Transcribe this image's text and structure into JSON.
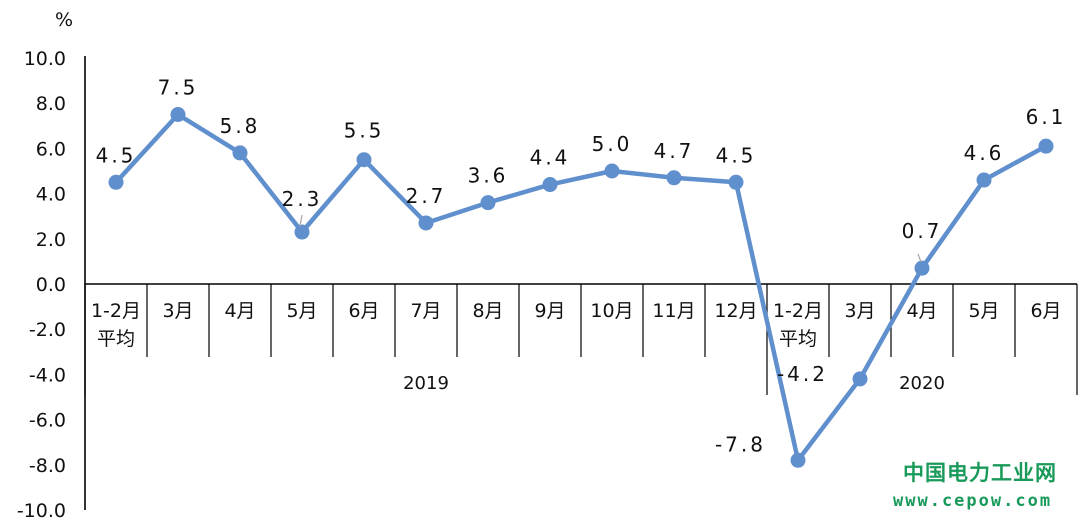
{
  "chart_data": {
    "type": "line",
    "unit": "%",
    "ylim": [
      -10,
      10
    ],
    "yticks": [
      "10.0",
      "8.0",
      "6.0",
      "4.0",
      "2.0",
      "0.0",
      "-2.0",
      "-4.0",
      "-6.0",
      "-8.0",
      "-10.0"
    ],
    "categories": [
      [
        "1-2月",
        "平均"
      ],
      [
        "3月"
      ],
      [
        "4月"
      ],
      [
        "5月"
      ],
      [
        "6月"
      ],
      [
        "7月"
      ],
      [
        "8月"
      ],
      [
        "9月"
      ],
      [
        "10月"
      ],
      [
        "11月"
      ],
      [
        "12月"
      ],
      [
        "1-2月",
        "平均"
      ],
      [
        "3月"
      ],
      [
        "4月"
      ],
      [
        "5月"
      ],
      [
        "6月"
      ]
    ],
    "groups": [
      {
        "label": "2019",
        "count": 11
      },
      {
        "label": "2020",
        "count": 5
      }
    ],
    "series": [
      {
        "color": "#5f8fcd",
        "values": [
          4.5,
          7.5,
          5.8,
          2.3,
          5.5,
          2.7,
          3.6,
          4.4,
          5.0,
          4.7,
          4.5,
          -7.8,
          -4.2,
          0.7,
          4.6,
          6.1
        ],
        "labels": [
          "4.5",
          "7.5",
          "5.8",
          "2.3",
          "5.5",
          "2.7",
          "3.6",
          "4.4",
          "5.0",
          "4.7",
          "4.5",
          "-7.8",
          "-4.2",
          "0.7",
          "4.6",
          "6.1"
        ]
      }
    ],
    "grid": false,
    "legend": "none"
  },
  "watermark": {
    "name": "中国电力工业网",
    "url": "www.cepow.com",
    "color": "#1a9a5a"
  }
}
